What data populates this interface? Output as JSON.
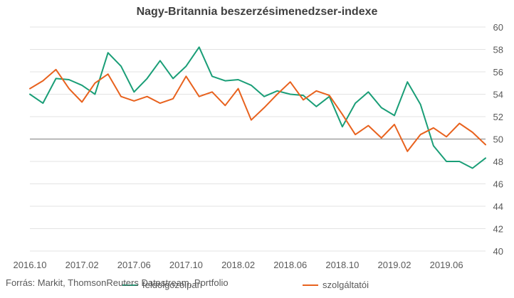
{
  "chart_data": {
    "type": "line",
    "title": "Nagy-Britannia beszerzésimenedzser-indexe",
    "source": "Forrás: Markit, ThomsonReuters Datastream, Portfolio",
    "y_axis": {
      "side": "right",
      "ylim": [
        40,
        60
      ],
      "ticks": [
        "60",
        "58",
        "56",
        "54",
        "52",
        "50",
        "48",
        "46",
        "44",
        "42",
        "40"
      ]
    },
    "reference_line": 50,
    "x_tick_labels": [
      "2016.10",
      "2017.02",
      "2017.06",
      "2017.10",
      "2018.02",
      "2018.06",
      "2018.10",
      "2019.02",
      "2019.06"
    ],
    "x_tick_index": [
      0,
      4,
      8,
      12,
      16,
      20,
      24,
      28,
      32
    ],
    "n_points": 36,
    "grid": true,
    "legend_position": "bottom",
    "series": [
      {
        "name": "feldolgozóipari",
        "color": "#1a9e77",
        "values": [
          54.0,
          53.2,
          55.4,
          55.3,
          54.8,
          54.0,
          57.7,
          56.5,
          54.2,
          55.4,
          57.0,
          55.4,
          56.5,
          58.2,
          55.6,
          55.2,
          55.3,
          54.8,
          53.8,
          54.3,
          54.0,
          53.9,
          52.9,
          53.8,
          51.1,
          53.2,
          54.2,
          52.8,
          52.1,
          55.1,
          53.1,
          49.4,
          48.0,
          48.0,
          47.4,
          48.3
        ]
      },
      {
        "name": "szolgáltatói",
        "color": "#e8621e",
        "values": [
          54.5,
          55.2,
          56.2,
          54.5,
          53.3,
          55.0,
          55.8,
          53.8,
          53.4,
          53.8,
          53.2,
          53.6,
          55.6,
          53.8,
          54.2,
          53.0,
          54.5,
          51.7,
          52.8,
          54.0,
          55.1,
          53.5,
          54.3,
          53.9,
          52.2,
          50.4,
          51.2,
          50.1,
          51.3,
          48.9,
          50.4,
          51.0,
          50.2,
          51.4,
          50.6,
          49.5
        ]
      }
    ]
  }
}
